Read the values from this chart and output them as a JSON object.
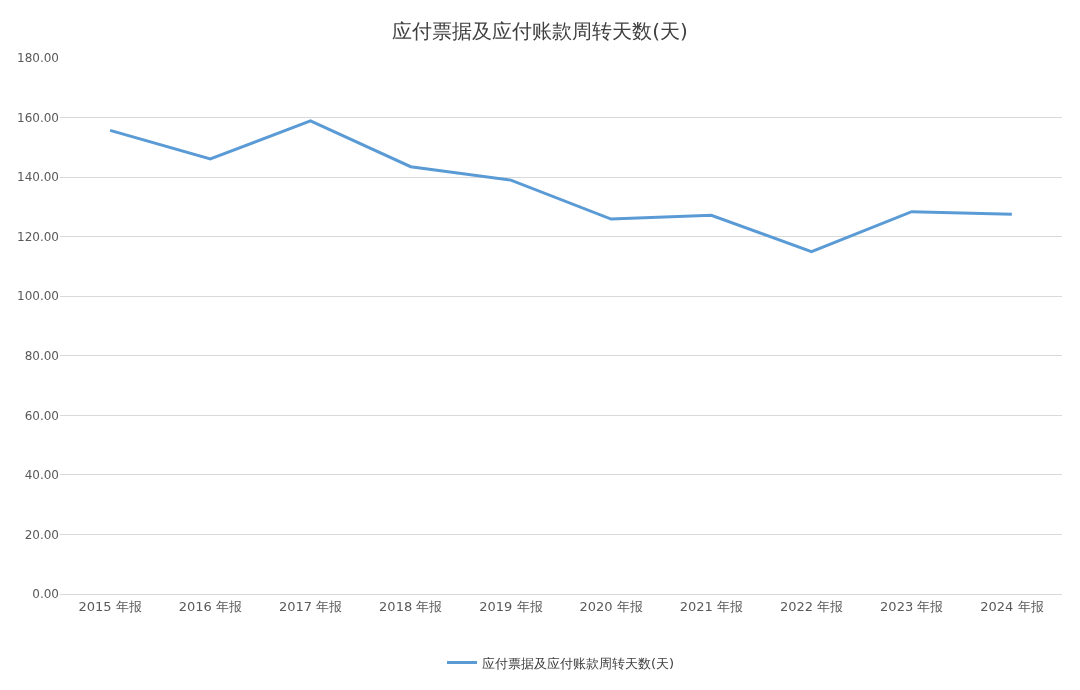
{
  "chart_data": {
    "type": "line",
    "title": "应付票据及应付账款周转天数(天)",
    "categories": [
      "2015 年报",
      "2016 年报",
      "2017 年报",
      "2018 年报",
      "2019 年报",
      "2020 年报",
      "2021 年报",
      "2022 年报",
      "2023 年报",
      "2024 年报"
    ],
    "series": [
      {
        "name": "应付票据及应付账款周转天数(天)",
        "color": "#5b9bd5",
        "values": [
          155.7,
          146.1,
          158.9,
          143.5,
          139.0,
          125.9,
          127.2,
          115.0,
          128.4,
          127.5
        ]
      }
    ],
    "ylim": [
      0,
      180
    ],
    "yticks": [
      {
        "value": 0,
        "label": "0.00"
      },
      {
        "value": 20,
        "label": "20.00"
      },
      {
        "value": 40,
        "label": "40.00"
      },
      {
        "value": 60,
        "label": "60.00"
      },
      {
        "value": 80,
        "label": "80.00"
      },
      {
        "value": 100,
        "label": "100.00"
      },
      {
        "value": 120,
        "label": "120.00"
      },
      {
        "value": 140,
        "label": "140.00"
      },
      {
        "value": 160,
        "label": "160.00"
      },
      {
        "value": 180,
        "label": "180.00"
      }
    ],
    "grid": "y",
    "legend": "bottom",
    "marker": "none",
    "line_style": "solid"
  }
}
